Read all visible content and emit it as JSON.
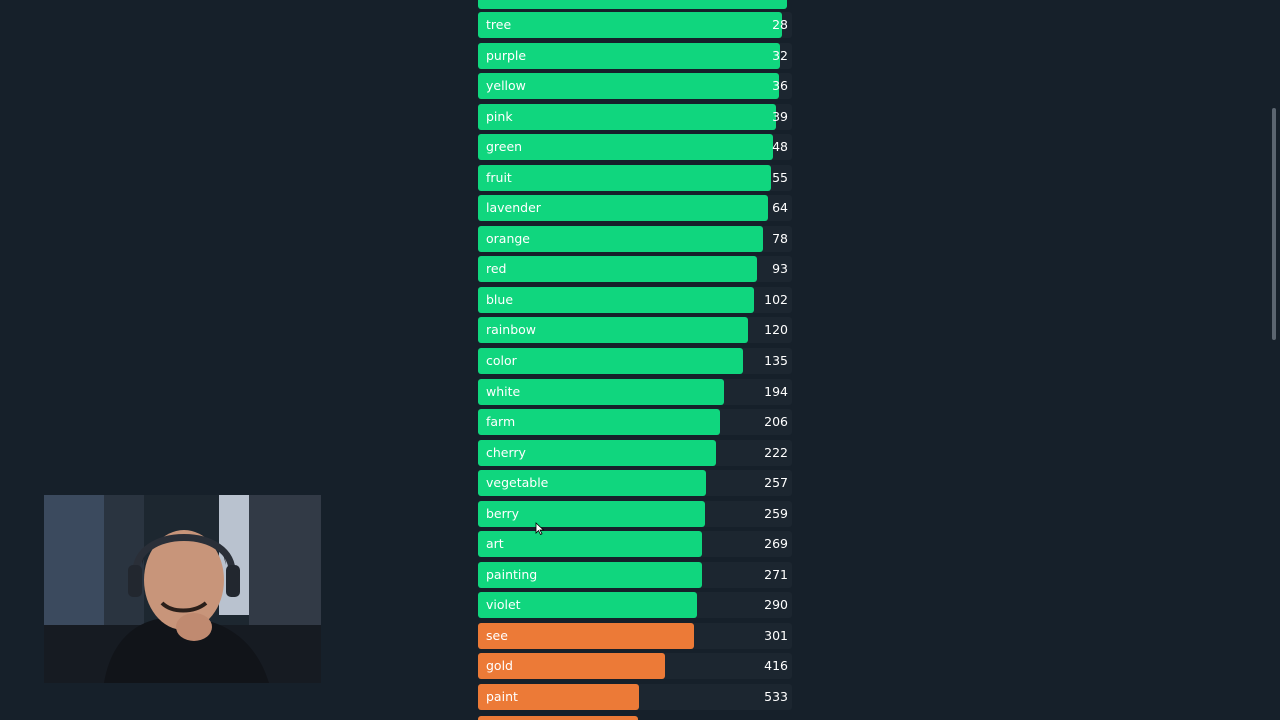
{
  "colors": {
    "background": "#16202a",
    "green": "#10d67e",
    "orange": "#ec7a37",
    "track": "#1c2630"
  },
  "rows": [
    {
      "label": "tree",
      "count": "28",
      "value": 28,
      "fill": 0.98,
      "color": "green"
    },
    {
      "label": "purple",
      "count": "32",
      "value": 32,
      "fill": 0.975,
      "color": "green"
    },
    {
      "label": "yellow",
      "count": "36",
      "value": 36,
      "fill": 0.97,
      "color": "green"
    },
    {
      "label": "pink",
      "count": "39",
      "value": 39,
      "fill": 0.96,
      "color": "green"
    },
    {
      "label": "green",
      "count": "48",
      "value": 48,
      "fill": 0.952,
      "color": "green"
    },
    {
      "label": "fruit",
      "count": "55",
      "value": 55,
      "fill": 0.945,
      "color": "green"
    },
    {
      "label": "lavender",
      "count": "64",
      "value": 64,
      "fill": 0.935,
      "color": "green"
    },
    {
      "label": "orange",
      "count": "78",
      "value": 78,
      "fill": 0.92,
      "color": "green"
    },
    {
      "label": "red",
      "count": "93",
      "value": 93,
      "fill": 0.9,
      "color": "green"
    },
    {
      "label": "blue",
      "count": "102",
      "value": 102,
      "fill": 0.89,
      "color": "green"
    },
    {
      "label": "rainbow",
      "count": "120",
      "value": 120,
      "fill": 0.87,
      "color": "green"
    },
    {
      "label": "color",
      "count": "135",
      "value": 135,
      "fill": 0.855,
      "color": "green"
    },
    {
      "label": "white",
      "count": "194",
      "value": 194,
      "fill": 0.795,
      "color": "green"
    },
    {
      "label": "farm",
      "count": "206",
      "value": 206,
      "fill": 0.782,
      "color": "green"
    },
    {
      "label": "cherry",
      "count": "222",
      "value": 222,
      "fill": 0.768,
      "color": "green"
    },
    {
      "label": "vegetable",
      "count": "257",
      "value": 257,
      "fill": 0.735,
      "color": "green"
    },
    {
      "label": "berry",
      "count": "259",
      "value": 259,
      "fill": 0.733,
      "color": "green"
    },
    {
      "label": "art",
      "count": "269",
      "value": 269,
      "fill": 0.724,
      "color": "green"
    },
    {
      "label": "painting",
      "count": "271",
      "value": 271,
      "fill": 0.722,
      "color": "green"
    },
    {
      "label": "violet",
      "count": "290",
      "value": 290,
      "fill": 0.705,
      "color": "green"
    },
    {
      "label": "see",
      "count": "301",
      "value": 301,
      "fill": 0.697,
      "color": "orange"
    },
    {
      "label": "gold",
      "count": "416",
      "value": 416,
      "fill": 0.603,
      "color": "orange"
    },
    {
      "label": "paint",
      "count": "533",
      "value": 533,
      "fill": 0.52,
      "color": "orange"
    }
  ],
  "overlay": {
    "webcam_icon": "person-webcam",
    "cursor_icon": "mouse-pointer-icon"
  }
}
